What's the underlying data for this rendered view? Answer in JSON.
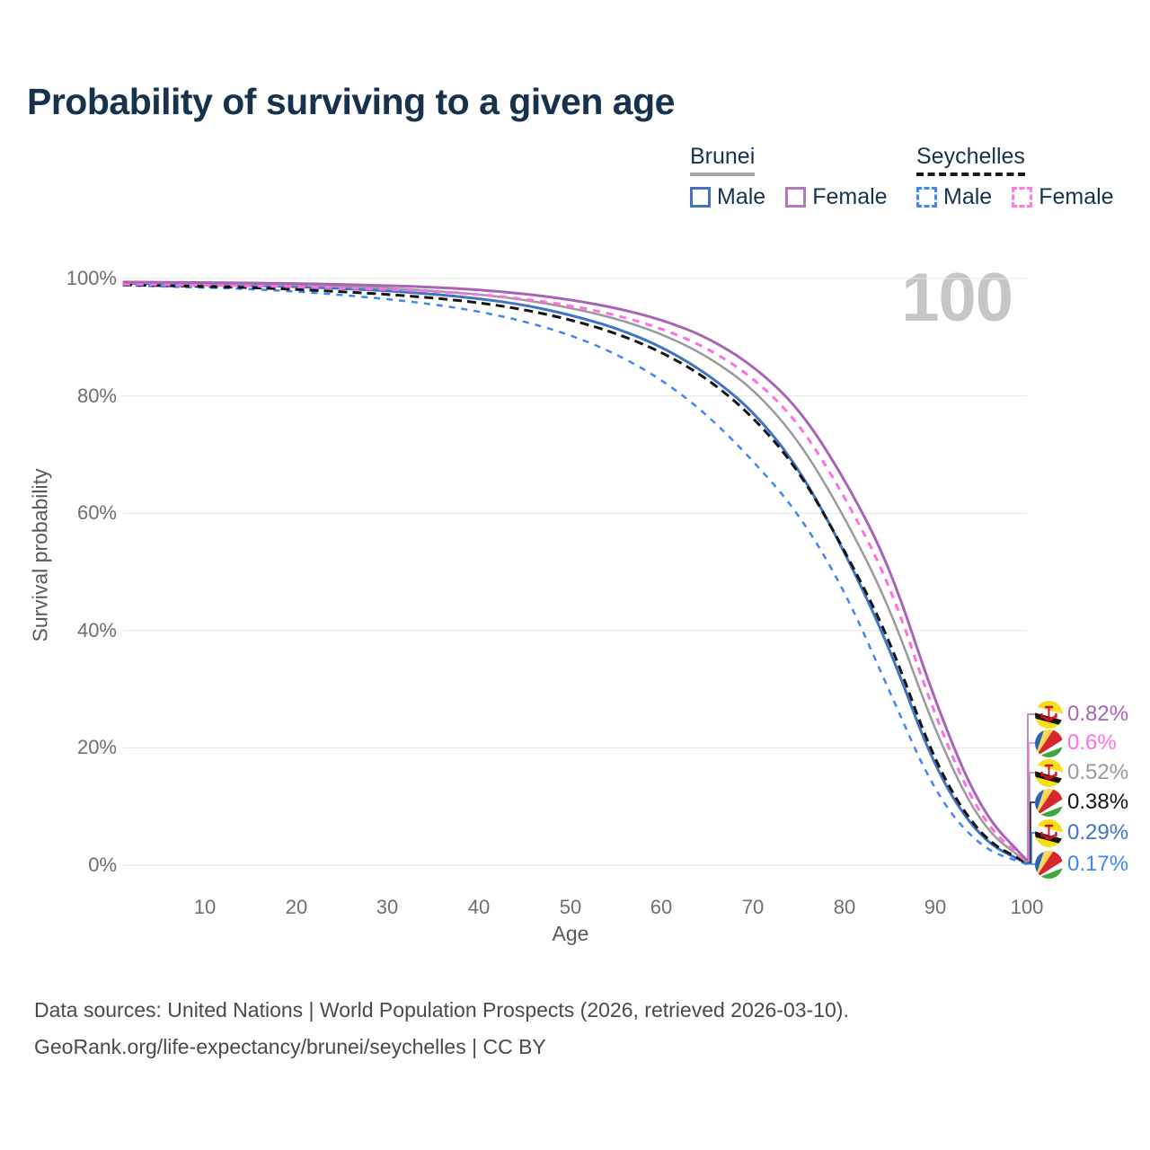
{
  "page": {
    "title": "Probability of surviving to a given age"
  },
  "watermark": "100",
  "legend": {
    "groups": [
      {
        "country": "Brunei",
        "line_style": "solid",
        "underline_color": "#a5a5a5",
        "items": [
          {
            "label": "Male",
            "color": "#4274bf",
            "dashed": false
          },
          {
            "label": "Female",
            "color": "#b478bb",
            "dashed": false
          }
        ]
      },
      {
        "country": "Seychelles",
        "line_style": "dashed",
        "underline_color": "#1a1a1a",
        "items": [
          {
            "label": "Male",
            "color": "#4187f2",
            "dashed": true
          },
          {
            "label": "Female",
            "color": "#ff7ae0",
            "dashed": true
          }
        ]
      }
    ]
  },
  "chart_data": {
    "type": "line",
    "title": "Probability of surviving to a given age",
    "xlabel": "Age",
    "ylabel": "Survival probability",
    "xlim": [
      1,
      100
    ],
    "ylim": [
      0,
      100
    ],
    "x_ticks": [
      10,
      20,
      30,
      40,
      50,
      60,
      70,
      80,
      90,
      100
    ],
    "y_ticks": [
      0,
      20,
      40,
      60,
      80,
      100
    ],
    "y_tick_suffix": "%",
    "grid": "horizontal-only",
    "legend_position": "top-right",
    "hovered_age": 100,
    "x": [
      1,
      5,
      10,
      15,
      20,
      25,
      30,
      35,
      40,
      45,
      50,
      55,
      60,
      65,
      70,
      75,
      80,
      85,
      90,
      95,
      100
    ],
    "series": [
      {
        "name": "Brunei Female",
        "country": "Brunei",
        "sex": "Female",
        "slug": "brunei-female",
        "color": "#a963b5",
        "dash": "",
        "width": 3,
        "flag": "brunei",
        "end_label": "0.82%",
        "end_value": 0.82,
        "values": [
          99.4,
          99.35,
          99.3,
          99.25,
          99.15,
          99.0,
          98.8,
          98.5,
          98.1,
          97.4,
          96.4,
          95.0,
          93.0,
          90.0,
          85.2,
          78.0,
          66.0,
          51.0,
          27.5,
          9.0,
          0.82
        ]
      },
      {
        "name": "Seychelles Female",
        "country": "Seychelles",
        "sex": "Female",
        "slug": "seychelles-female",
        "color": "#ff6ee4",
        "dash": "8 7",
        "width": 3,
        "flag": "seychelles",
        "end_label": "0.6%",
        "end_value": 0.6,
        "values": [
          99.05,
          98.95,
          98.85,
          98.75,
          98.6,
          98.4,
          98.15,
          97.8,
          97.3,
          96.5,
          95.4,
          93.8,
          91.5,
          88.2,
          83.2,
          75.5,
          63.0,
          48.0,
          25.0,
          7.5,
          0.6
        ]
      },
      {
        "name": "Brunei Both sexes",
        "country": "Brunei",
        "sex": "Both",
        "slug": "brunei-all",
        "color": "#9a9a9a",
        "dash": "",
        "width": 2.5,
        "flag": "brunei",
        "end_label": "0.52%",
        "end_value": 0.52,
        "values": [
          99.3,
          99.2,
          99.15,
          99.05,
          98.9,
          98.65,
          98.35,
          97.9,
          97.3,
          96.4,
          95.0,
          93.2,
          90.6,
          86.8,
          81.3,
          72.5,
          59.5,
          44.0,
          22.5,
          6.5,
          0.52
        ]
      },
      {
        "name": "Seychelles Both sexes",
        "country": "Seychelles",
        "sex": "Both",
        "slug": "seychelles-all",
        "color": "#141414",
        "dash": "10 6",
        "width": 3,
        "flag": "seychelles",
        "end_label": "0.38%",
        "end_value": 0.38,
        "values": [
          98.95,
          98.8,
          98.65,
          98.45,
          98.15,
          97.75,
          97.3,
          96.7,
          95.9,
          94.7,
          93.0,
          90.7,
          87.5,
          83.0,
          76.5,
          67.4,
          53.8,
          38.5,
          17.0,
          4.6,
          0.38
        ]
      },
      {
        "name": "Brunei Male",
        "country": "Brunei",
        "sex": "Male",
        "slug": "brunei-male",
        "color": "#3f74c2",
        "dash": "",
        "width": 3,
        "flag": "brunei",
        "end_label": "0.29%",
        "end_value": 0.29,
        "values": [
          99.2,
          99.1,
          99.0,
          98.85,
          98.6,
          98.3,
          97.9,
          97.35,
          96.6,
          95.5,
          93.8,
          91.6,
          88.4,
          83.8,
          77.5,
          67.8,
          53.6,
          37.0,
          16.0,
          4.2,
          0.29
        ]
      },
      {
        "name": "Seychelles Male",
        "country": "Seychelles",
        "sex": "Male",
        "slug": "seychelles-male",
        "color": "#3f86f5",
        "dash": "7 7",
        "width": 2.5,
        "flag": "seychelles",
        "end_label": "0.17%",
        "end_value": 0.17,
        "values": [
          98.85,
          98.65,
          98.45,
          98.2,
          97.8,
          97.2,
          96.5,
          95.6,
          94.4,
          92.7,
          90.4,
          87.2,
          82.8,
          76.8,
          69.0,
          60.0,
          47.0,
          29.5,
          12.0,
          2.8,
          0.17
        ]
      }
    ]
  },
  "footer": {
    "line1": "Data sources: United Nations | World Population Prospects (2026, retrieved 2026-03-10).",
    "line2": "GeoRank.org/life-expectancy/brunei/seychelles | CC BY"
  }
}
